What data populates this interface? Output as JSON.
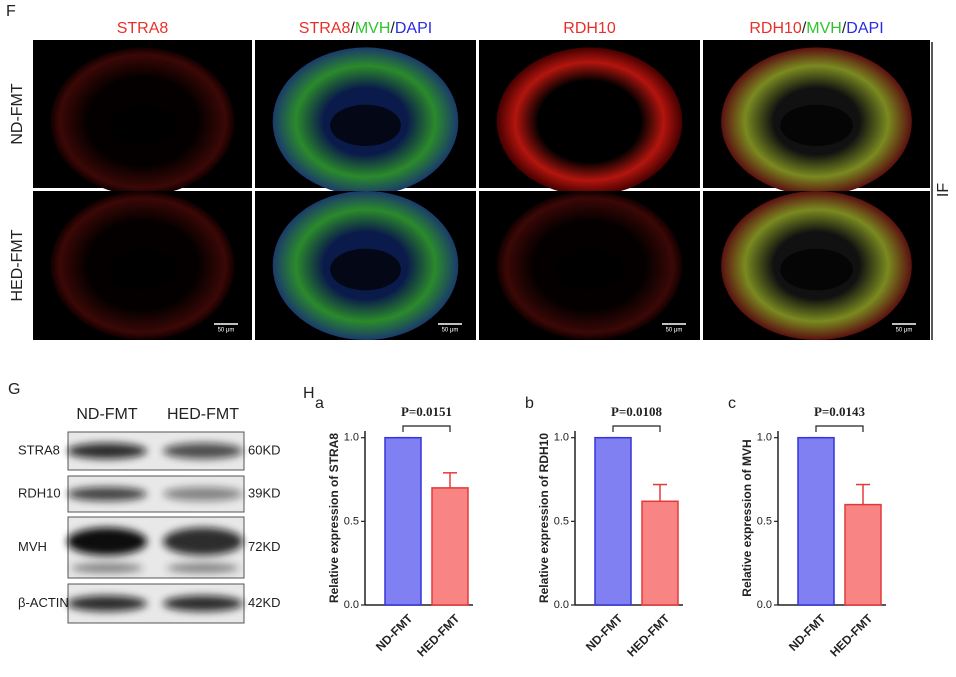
{
  "panel_f": {
    "label": "F",
    "columns": [
      [
        {
          "text": "STRA8",
          "color": "#e8302a"
        }
      ],
      [
        {
          "text": "STRA8",
          "color": "#e8302a"
        },
        {
          "text": "/",
          "color": "#222222"
        },
        {
          "text": "MVH",
          "color": "#2fc42f"
        },
        {
          "text": "/",
          "color": "#222222"
        },
        {
          "text": "DAPI",
          "color": "#2a2ae0"
        }
      ],
      [
        {
          "text": "RDH10",
          "color": "#e8302a"
        }
      ],
      [
        {
          "text": "RDH10",
          "color": "#e8302a"
        },
        {
          "text": "/",
          "color": "#222222"
        },
        {
          "text": "MVH",
          "color": "#2fc42f"
        },
        {
          "text": "/",
          "color": "#222222"
        },
        {
          "text": "DAPI",
          "color": "#2a2ae0"
        }
      ]
    ],
    "rows": [
      "ND-FMT",
      "HED-FMT"
    ],
    "method": "IF",
    "scale_bar": "50 μm"
  },
  "panel_g": {
    "label": "G",
    "lanes": [
      "ND-FMT",
      "HED-FMT"
    ],
    "bands": [
      {
        "protein": "STRA8",
        "size": "60KD"
      },
      {
        "protein": "RDH10",
        "size": "39KD"
      },
      {
        "protein": "MVH",
        "size": "72KD"
      },
      {
        "protein": "β-ACTIN",
        "size": "42KD"
      }
    ]
  },
  "panel_h": {
    "label": "H"
  },
  "chart_data": [
    {
      "type": "bar",
      "panel": "a",
      "ylabel": "Relative expression of STRA8",
      "categories": [
        "ND-FMT",
        "HED-FMT"
      ],
      "values": [
        1.0,
        0.7
      ],
      "errors": [
        0,
        0.09
      ],
      "colors": [
        "#8080f2",
        "#f98484"
      ],
      "edge_colors": [
        "#3535d9",
        "#e23a3a"
      ],
      "ylim": [
        0,
        1.04
      ],
      "yticks": [
        {
          "value": 0,
          "label": "0.0"
        },
        {
          "value": 0.5,
          "label": "0.5"
        },
        {
          "value": 1,
          "label": "1.0"
        }
      ],
      "annotation": "P=0.0151"
    },
    {
      "type": "bar",
      "panel": "b",
      "ylabel": "Relative expression of RDH10",
      "categories": [
        "ND-FMT",
        "HED-FMT"
      ],
      "values": [
        1.0,
        0.62
      ],
      "errors": [
        0,
        0.1
      ],
      "colors": [
        "#8080f2",
        "#f98484"
      ],
      "edge_colors": [
        "#3535d9",
        "#e23a3a"
      ],
      "ylim": [
        0,
        1.04
      ],
      "yticks": [
        {
          "value": 0,
          "label": "0.0"
        },
        {
          "value": 0.5,
          "label": "0.5"
        },
        {
          "value": 1,
          "label": "1.0"
        }
      ],
      "annotation": "P=0.0108"
    },
    {
      "type": "bar",
      "panel": "c",
      "ylabel": "Relative expression of MVH",
      "categories": [
        "ND-FMT",
        "HED-FMT"
      ],
      "values": [
        1.0,
        0.6
      ],
      "errors": [
        0,
        0.12
      ],
      "colors": [
        "#8080f2",
        "#f98484"
      ],
      "edge_colors": [
        "#3535d9",
        "#e23a3a"
      ],
      "ylim": [
        0,
        1.04
      ],
      "yticks": [
        {
          "value": 0,
          "label": "0.0"
        },
        {
          "value": 0.5,
          "label": "0.5"
        },
        {
          "value": 1,
          "label": "1.0"
        }
      ],
      "annotation": "P=0.0143"
    }
  ]
}
